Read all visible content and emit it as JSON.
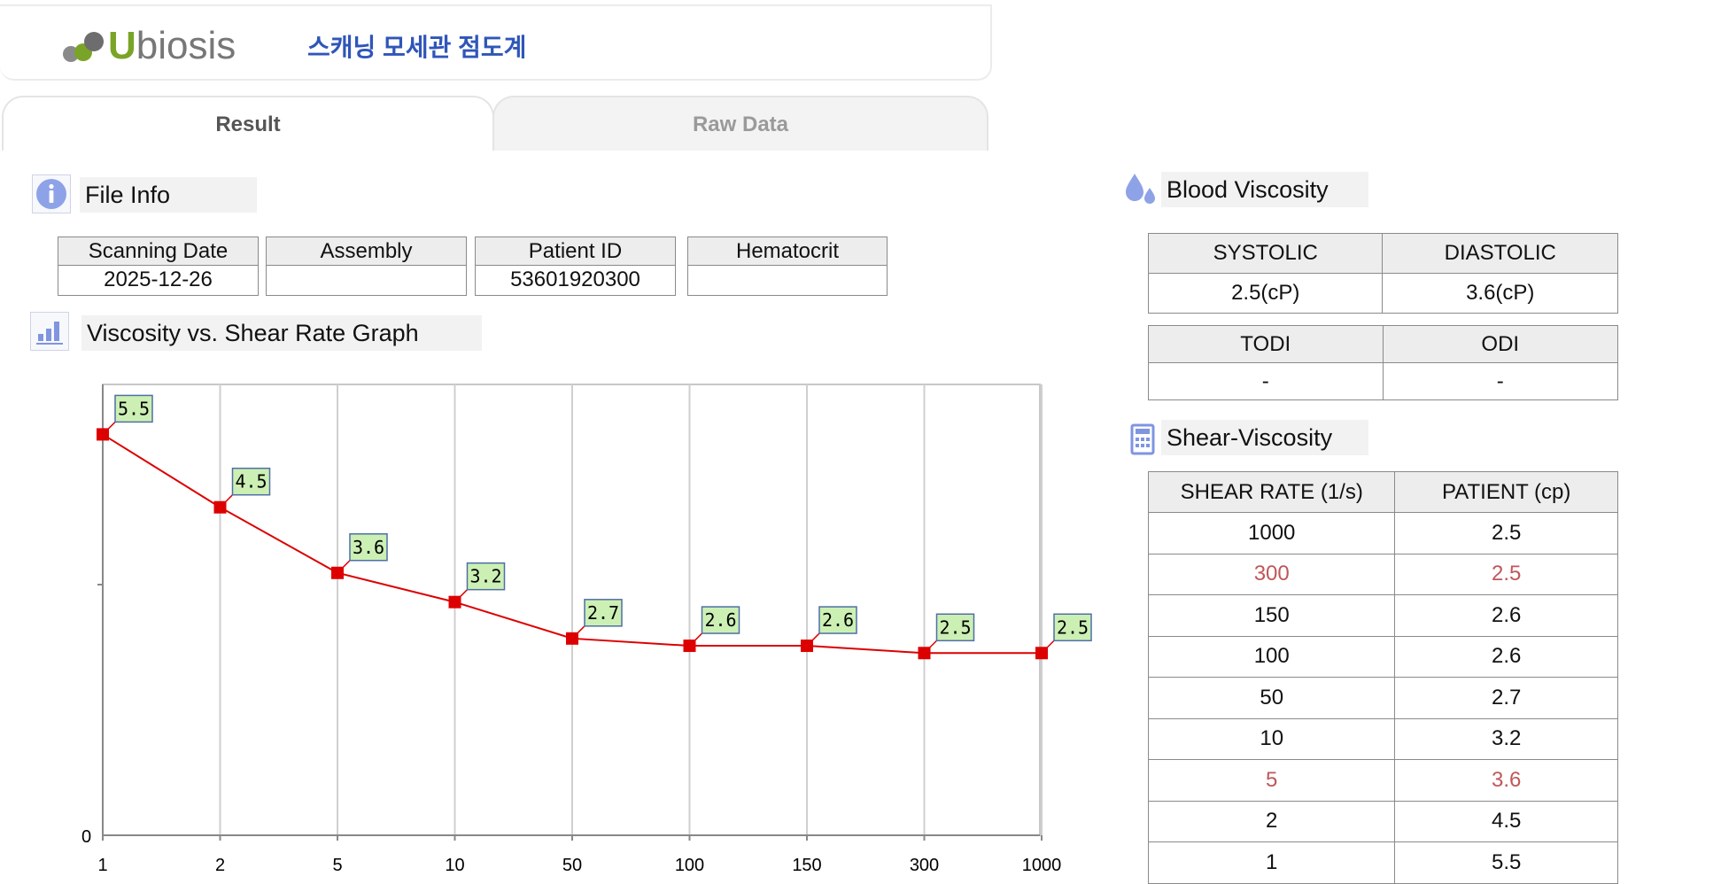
{
  "header": {
    "logo_text": "Ubiosis",
    "app_title": "스캐닝 모세관 점도계"
  },
  "tabs": [
    {
      "label": "Result",
      "active": true
    },
    {
      "label": "Raw Data",
      "active": false
    }
  ],
  "file_info": {
    "title": "File Info",
    "columns": [
      "Scanning Date",
      "Assembly",
      "Patient ID",
      "Hematocrit"
    ],
    "values": [
      "2025-12-26",
      "",
      "53601920300",
      ""
    ]
  },
  "graph": {
    "title": "Viscosity vs. Shear Rate Graph"
  },
  "blood_viscosity": {
    "title": "Blood Viscosity",
    "row1_headers": [
      "SYSTOLIC",
      "DIASTOLIC"
    ],
    "row1_values": [
      "2.5(cP)",
      "3.6(cP)"
    ],
    "row2_headers": [
      "TODI",
      "ODI"
    ],
    "row2_values": [
      "-",
      "-"
    ]
  },
  "shear_viscosity": {
    "title": "Shear-Viscosity",
    "headers": [
      "SHEAR RATE (1/s)",
      "PATIENT (cp)"
    ],
    "rows": [
      {
        "rate": "1000",
        "patient": "2.5",
        "highlight": false
      },
      {
        "rate": "300",
        "patient": "2.5",
        "highlight": true
      },
      {
        "rate": "150",
        "patient": "2.6",
        "highlight": false
      },
      {
        "rate": "100",
        "patient": "2.6",
        "highlight": false
      },
      {
        "rate": "50",
        "patient": "2.7",
        "highlight": false
      },
      {
        "rate": "10",
        "patient": "3.2",
        "highlight": false
      },
      {
        "rate": "5",
        "patient": "3.6",
        "highlight": true
      },
      {
        "rate": "2",
        "patient": "4.5",
        "highlight": false
      },
      {
        "rate": "1",
        "patient": "5.5",
        "highlight": false
      }
    ]
  },
  "colors": {
    "series": "#dd0000",
    "label_bg": "#ccf0b4",
    "label_border": "#4f6fa5",
    "highlight_text": "#c0575a",
    "title_blue": "#2f56b8"
  },
  "chart_data": {
    "type": "line",
    "categories": [
      "1",
      "2",
      "5",
      "10",
      "50",
      "100",
      "150",
      "300",
      "1000"
    ],
    "series": [
      {
        "values": [
          5.5,
          4.5,
          3.6,
          3.2,
          2.7,
          2.6,
          2.6,
          2.5,
          2.5
        ]
      }
    ],
    "data_labels": [
      "5.5",
      "4.5",
      "3.6",
      "3.2",
      "2.7",
      "2.6",
      "2.6",
      "2.5",
      "2.5"
    ],
    "y_tick_labels": [
      "0"
    ],
    "ylim": [
      0,
      6
    ],
    "title": "",
    "xlabel": "",
    "ylabel": "",
    "grid": "vertical",
    "legend": "none"
  }
}
